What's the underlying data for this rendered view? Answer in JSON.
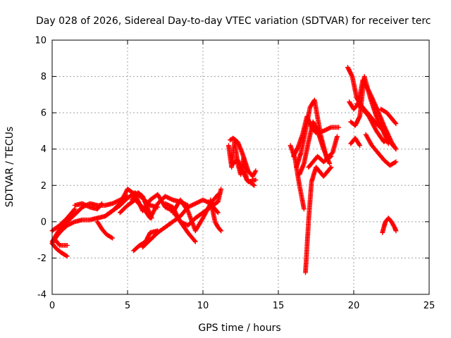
{
  "chart_data": {
    "type": "scatter",
    "title": "Day 028 of 2026, Sidereal Day-to-day VTEC variation (SDTVAR) for receiver terc",
    "xlabel": "GPS time / hours",
    "ylabel": "SDTVAR / TECUs",
    "xlim": [
      0,
      25
    ],
    "ylim": [
      -4,
      10
    ],
    "xticks": [
      0,
      5,
      10,
      15,
      20,
      25
    ],
    "yticks": [
      -4,
      -2,
      0,
      2,
      4,
      6,
      8,
      10
    ],
    "grid": true,
    "legend": "none",
    "marker": "+",
    "color": "#ff0000",
    "series": [
      {
        "name": "s1",
        "x": [
          0.0,
          0.5,
          1.0,
          1.5,
          2.0,
          2.5,
          3.0,
          3.5,
          4.0,
          4.5,
          5.0
        ],
        "y": [
          -1.1,
          -0.4,
          0.0,
          0.4,
          0.8,
          1.0,
          0.9,
          0.9,
          1.0,
          1.2,
          1.4
        ]
      },
      {
        "name": "s2",
        "x": [
          0.0,
          0.3,
          0.6,
          1.0,
          1.5,
          2.0,
          2.5,
          3.0,
          3.5,
          4.0,
          4.5,
          5.0,
          5.5,
          6.0,
          6.5,
          7.0
        ],
        "y": [
          -1.2,
          -0.8,
          -0.5,
          -0.2,
          0.0,
          0.1,
          0.1,
          0.2,
          0.3,
          0.6,
          0.9,
          1.3,
          1.6,
          1.3,
          0.9,
          0.8
        ]
      },
      {
        "name": "s3",
        "x": [
          0.0,
          0.3,
          0.6,
          1.0
        ],
        "y": [
          -1.2,
          -1.5,
          -1.7,
          -1.9
        ]
      },
      {
        "name": "s4",
        "x": [
          0.2,
          0.5,
          1.0
        ],
        "y": [
          -1.0,
          -1.3,
          -1.3
        ]
      },
      {
        "name": "s5",
        "x": [
          0.0,
          0.5,
          1.0,
          1.5
        ],
        "y": [
          -0.5,
          -0.2,
          0.2,
          0.7
        ]
      },
      {
        "name": "s6",
        "x": [
          1.5,
          2.0,
          2.5,
          3.0,
          3.3
        ],
        "y": [
          0.9,
          1.0,
          0.8,
          0.7,
          1.0
        ]
      },
      {
        "name": "s7",
        "x": [
          3.0,
          3.3,
          3.6,
          4.0
        ],
        "y": [
          0.0,
          -0.4,
          -0.7,
          -0.9
        ]
      },
      {
        "name": "s8",
        "x": [
          3.5,
          4.0,
          4.5,
          5.0,
          5.5,
          6.0,
          6.5,
          7.0,
          7.5,
          8.0,
          8.5,
          9.0,
          9.5
        ],
        "y": [
          0.3,
          0.6,
          1.0,
          1.8,
          1.5,
          0.6,
          1.2,
          1.5,
          0.8,
          0.6,
          0.0,
          -0.6,
          -1.1
        ]
      },
      {
        "name": "s9",
        "x": [
          4.5,
          5.0,
          5.5,
          6.0,
          6.5,
          7.0,
          7.5,
          8.0,
          8.5,
          9.0
        ],
        "y": [
          0.5,
          0.9,
          1.2,
          0.8,
          0.2,
          1.0,
          1.4,
          1.2,
          1.1,
          0.9
        ]
      },
      {
        "name": "s10",
        "x": [
          5.3,
          5.7,
          6.0,
          6.3,
          6.6
        ],
        "y": [
          1.2,
          1.6,
          1.4,
          0.8,
          0.2
        ]
      },
      {
        "name": "s11",
        "x": [
          5.4,
          5.8,
          6.2,
          6.5,
          7.0
        ],
        "y": [
          -1.6,
          -1.3,
          -1.1,
          -0.6,
          -0.5
        ]
      },
      {
        "name": "s12",
        "x": [
          6.0,
          6.5,
          7.0,
          7.5,
          8.0,
          8.5,
          9.0,
          9.5,
          10.0,
          10.5,
          11.0
        ],
        "y": [
          -1.4,
          -1.0,
          -0.6,
          -0.3,
          0.0,
          0.3,
          0.8,
          1.0,
          1.2,
          1.0,
          1.5
        ]
      },
      {
        "name": "s13",
        "x": [
          7.5,
          8.0,
          8.5,
          9.0,
          9.5,
          10.0,
          10.5,
          11.0,
          11.2
        ],
        "y": [
          1.0,
          0.8,
          0.0,
          -0.2,
          0.2,
          0.5,
          0.8,
          1.1,
          1.8
        ]
      },
      {
        "name": "s14",
        "x": [
          8.0,
          8.5,
          9.0,
          9.5,
          10.0,
          10.5,
          11.0
        ],
        "y": [
          0.5,
          1.2,
          0.6,
          -0.5,
          0.2,
          1.0,
          0.5
        ]
      },
      {
        "name": "s15",
        "x": [
          10.5,
          10.8,
          11.0,
          11.2
        ],
        "y": [
          1.2,
          0.0,
          -0.3,
          -0.5
        ]
      },
      {
        "name": "s16",
        "x": [
          11.7,
          11.9,
          12.1,
          12.3,
          12.5,
          12.7,
          12.9,
          13.1,
          13.4
        ],
        "y": [
          4.2,
          3.0,
          4.5,
          3.2,
          2.6,
          3.5,
          2.3,
          2.2,
          2.0
        ]
      },
      {
        "name": "s17",
        "x": [
          11.8,
          12.0,
          12.3,
          12.6,
          13.0,
          13.3,
          13.5
        ],
        "y": [
          4.5,
          4.6,
          4.4,
          3.8,
          2.8,
          2.5,
          2.8
        ]
      },
      {
        "name": "s18",
        "x": [
          12.0,
          12.3,
          12.6,
          13.0,
          13.5
        ],
        "y": [
          3.2,
          3.4,
          2.8,
          2.2,
          2.3
        ]
      },
      {
        "name": "s19",
        "x": [
          15.8,
          16.1,
          16.4,
          16.7
        ],
        "y": [
          4.2,
          3.5,
          2.0,
          0.7
        ]
      },
      {
        "name": "s20",
        "x": [
          16.0,
          16.3,
          16.6,
          16.9,
          17.2,
          17.5,
          18.0,
          18.5,
          19.0
        ],
        "y": [
          3.6,
          4.1,
          4.8,
          5.8,
          5.2,
          4.9,
          5.0,
          5.2,
          5.2
        ]
      },
      {
        "name": "s21",
        "x": [
          16.2,
          16.5,
          16.8,
          17.1,
          17.4,
          17.8,
          18.2,
          18.6,
          18.9
        ],
        "y": [
          3.0,
          3.8,
          5.0,
          6.3,
          6.7,
          4.8,
          3.5,
          3.8,
          4.7
        ]
      },
      {
        "name": "s22",
        "x": [
          16.4,
          16.7,
          17.0,
          17.3,
          17.6,
          18.0,
          18.4
        ],
        "y": [
          2.6,
          3.2,
          4.4,
          5.5,
          5.0,
          4.0,
          3.2
        ]
      },
      {
        "name": "s23",
        "x": [
          16.8,
          17.0,
          17.2,
          17.5,
          18.0,
          18.5
        ],
        "y": [
          -2.8,
          0.0,
          2.2,
          3.0,
          2.5,
          3.0
        ]
      },
      {
        "name": "s24",
        "x": [
          17.0,
          17.3,
          17.6,
          18.0,
          18.5
        ],
        "y": [
          3.0,
          3.3,
          3.6,
          3.3,
          3.6
        ]
      },
      {
        "name": "s25",
        "x": [
          19.6,
          19.9,
          20.2,
          20.5,
          21.0,
          21.5,
          22.0,
          22.5,
          22.8
        ],
        "y": [
          8.5,
          8.0,
          6.8,
          6.4,
          5.9,
          5.4,
          5.0,
          4.3,
          4.0
        ]
      },
      {
        "name": "s26",
        "x": [
          19.7,
          20.0,
          20.3,
          20.6,
          21.0,
          21.5,
          22.0,
          22.5,
          22.8
        ],
        "y": [
          6.6,
          6.2,
          6.5,
          7.8,
          7.2,
          6.3,
          5.3,
          4.4,
          4.0
        ]
      },
      {
        "name": "s27",
        "x": [
          19.8,
          20.1,
          20.4,
          20.7,
          21.1,
          21.5,
          22.0,
          22.3
        ],
        "y": [
          5.5,
          5.3,
          5.8,
          8.0,
          6.8,
          5.8,
          4.9,
          4.3
        ]
      },
      {
        "name": "s28",
        "x": [
          20.2,
          20.6,
          21.0,
          21.5,
          22.0,
          22.3
        ],
        "y": [
          6.5,
          6.2,
          5.8,
          5.0,
          4.4,
          4.6
        ]
      },
      {
        "name": "s29",
        "x": [
          19.8,
          20.1,
          20.4
        ],
        "y": [
          4.3,
          4.6,
          4.2
        ]
      },
      {
        "name": "s30",
        "x": [
          20.8,
          21.2,
          21.6,
          22.0,
          22.4,
          22.8
        ],
        "y": [
          4.8,
          4.2,
          3.8,
          3.4,
          3.1,
          3.3
        ]
      },
      {
        "name": "s31",
        "x": [
          21.8,
          22.2,
          22.6,
          22.8
        ],
        "y": [
          6.2,
          6.0,
          5.6,
          5.4
        ]
      },
      {
        "name": "s32",
        "x": [
          21.9,
          22.0,
          22.1,
          22.3,
          22.5,
          22.7,
          22.8
        ],
        "y": [
          -0.6,
          -0.3,
          0.0,
          0.2,
          0.0,
          -0.3,
          -0.5
        ]
      }
    ]
  }
}
